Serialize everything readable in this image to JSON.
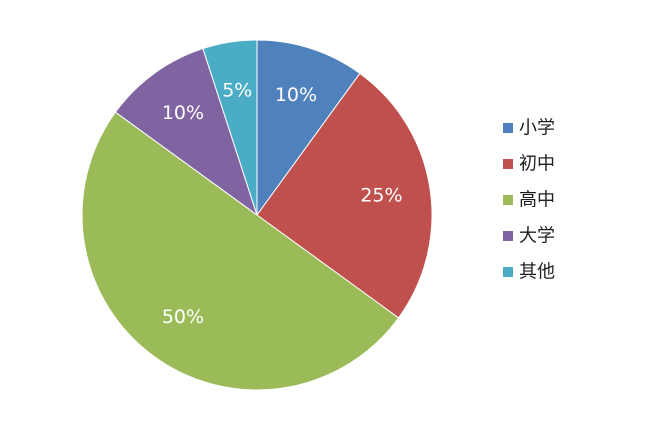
{
  "chart_data": {
    "type": "pie",
    "title": "",
    "categories": [
      "小学",
      "初中",
      "高中",
      "大学",
      "其他"
    ],
    "values": [
      10,
      25,
      50,
      10,
      5
    ],
    "value_labels": [
      "10%",
      "25%",
      "50%",
      "10%",
      "5%"
    ],
    "colors": [
      "#4f81bd",
      "#c0504d",
      "#9bbb59",
      "#8064a2",
      "#4bacc6"
    ],
    "start_angle": "12 o'clock",
    "direction": "clockwise",
    "legend": {
      "position": "right",
      "entries": [
        "小学",
        "初中",
        "高中",
        "大学",
        "其他"
      ]
    }
  }
}
